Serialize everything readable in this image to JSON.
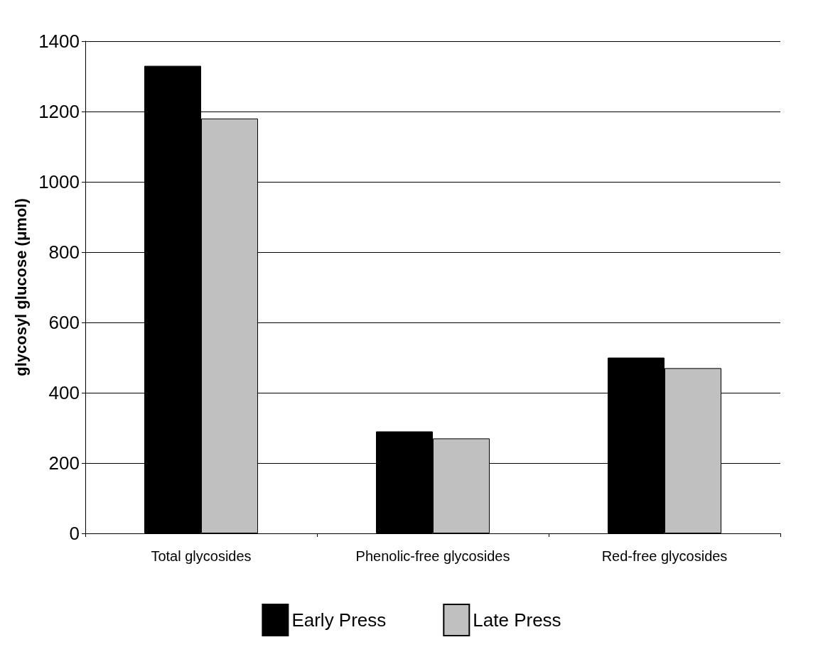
{
  "chart_data": {
    "type": "bar",
    "ylabel": "glycosyl glucose (μmol)",
    "categories": [
      "Total glycosides",
      "Phenolic-free glycosides",
      "Red-free glycosides"
    ],
    "series": [
      {
        "name": "Early Press",
        "color": "#000000",
        "values": [
          1330,
          290,
          500
        ]
      },
      {
        "name": "Late Press",
        "color": "#c0c0c0",
        "values": [
          1180,
          270,
          470
        ]
      }
    ],
    "ylim": [
      0,
      1400
    ],
    "yticks": [
      0,
      200,
      400,
      600,
      800,
      1000,
      1200,
      1400
    ],
    "grid": "y",
    "legend": "bottom"
  }
}
